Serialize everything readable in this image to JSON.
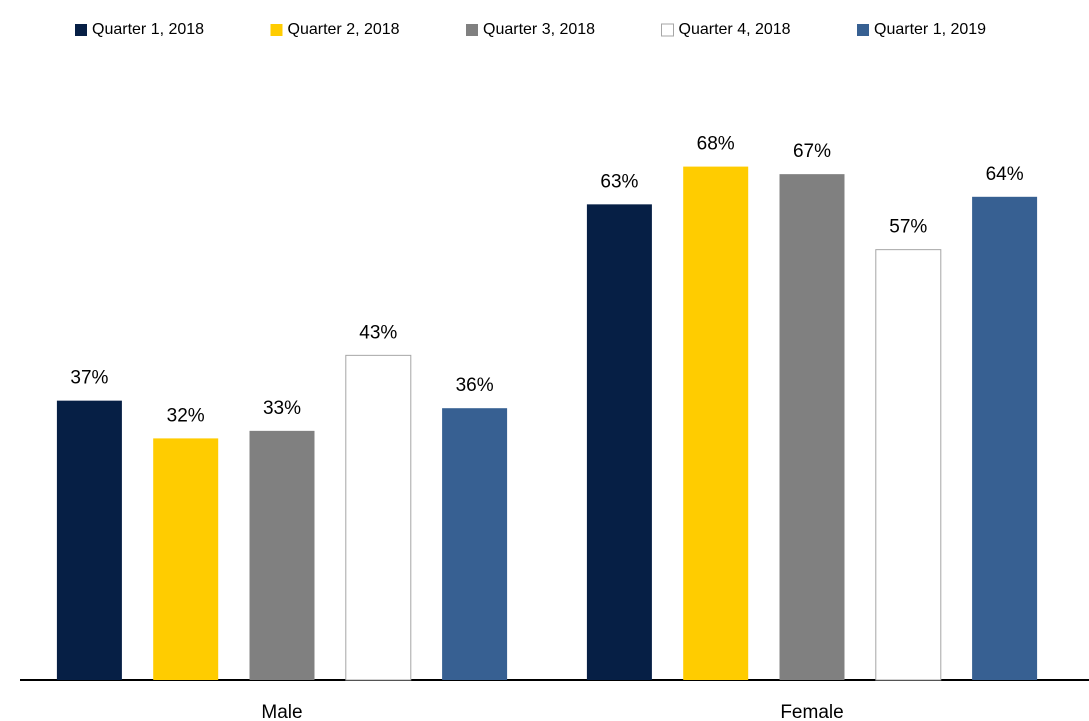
{
  "chart_data": {
    "type": "bar",
    "categories": [
      "Male",
      "Female"
    ],
    "series": [
      {
        "name": "Quarter 1, 2018",
        "color": "#061f45",
        "values": [
          37,
          63
        ],
        "value_labels": [
          "37%",
          "63%"
        ]
      },
      {
        "name": "Quarter 2, 2018",
        "color": "#ffcc00",
        "values": [
          32,
          68
        ],
        "value_labels": [
          "32%",
          "68%"
        ]
      },
      {
        "name": "Quarter 3, 2018",
        "color": "#808080",
        "values": [
          33,
          67
        ],
        "value_labels": [
          "33%",
          "67%"
        ]
      },
      {
        "name": "Quarter 4, 2018",
        "color": "#ffffff",
        "values": [
          43,
          57
        ],
        "value_labels": [
          "43%",
          "57%"
        ]
      },
      {
        "name": "Quarter 1, 2019",
        "color": "#376092",
        "values": [
          36,
          64
        ],
        "value_labels": [
          "36%",
          "64%"
        ]
      }
    ],
    "legend": "top"
  }
}
